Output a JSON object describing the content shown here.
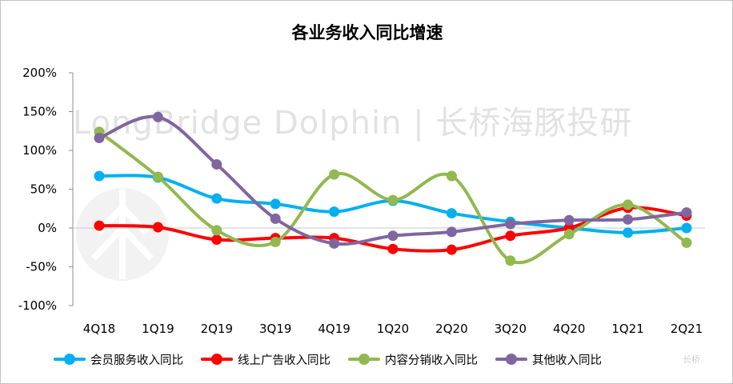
{
  "chart_data": {
    "type": "line",
    "title": "各业务收入同比增速",
    "categories": [
      "4Q18",
      "1Q19",
      "2Q19",
      "3Q19",
      "4Q19",
      "1Q20",
      "2Q20",
      "3Q20",
      "4Q20",
      "1Q21",
      "2Q21"
    ],
    "ylim": [
      -100,
      200
    ],
    "yticks": [
      "200%",
      "150%",
      "100%",
      "50%",
      "0%",
      "-50%",
      "-100%"
    ],
    "yticks_values": [
      200,
      150,
      100,
      50,
      0,
      -50,
      -100
    ],
    "grid": false,
    "legend_position": "bottom",
    "series": [
      {
        "name": "会员服务收入同比",
        "color": "#00B0F0",
        "values": [
          67,
          65,
          38,
          31,
          21,
          35,
          19,
          8,
          0,
          -6,
          0
        ]
      },
      {
        "name": "线上广告收入同比",
        "color": "#FF0000",
        "values": [
          3,
          1,
          -15,
          -13,
          -13,
          -27,
          -28,
          -10,
          0,
          26,
          16
        ]
      },
      {
        "name": "内容分销收入同比",
        "color": "#92B84F",
        "values": [
          124,
          66,
          -3,
          -18,
          69,
          36,
          67,
          -42,
          -8,
          30,
          -19
        ]
      },
      {
        "name": "其他收入同比",
        "color": "#7F66A0",
        "values": [
          116,
          143,
          82,
          12,
          -20,
          -10,
          -5,
          5,
          10,
          11,
          20
        ]
      }
    ]
  },
  "watermark": {
    "text": "LongBridge Dolphin | 长桥海豚投研",
    "footer": "长桥"
  }
}
